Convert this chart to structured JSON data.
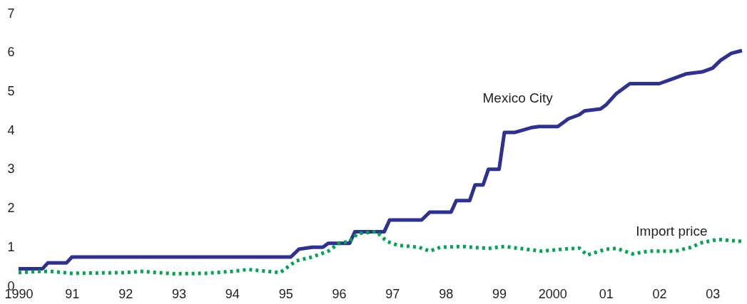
{
  "chart_data": {
    "type": "line",
    "xlim": [
      1990,
      2003.55
    ],
    "ylim": [
      0,
      7
    ],
    "xticks": [
      {
        "value": 1990,
        "label": "1990"
      },
      {
        "value": 1991,
        "label": "91"
      },
      {
        "value": 1992,
        "label": "92"
      },
      {
        "value": 1993,
        "label": "93"
      },
      {
        "value": 1994,
        "label": "94"
      },
      {
        "value": 1995,
        "label": "95"
      },
      {
        "value": 1996,
        "label": "96"
      },
      {
        "value": 1997,
        "label": "97"
      },
      {
        "value": 1998,
        "label": "98"
      },
      {
        "value": 1999,
        "label": "99"
      },
      {
        "value": 2000,
        "label": "2000"
      },
      {
        "value": 2001,
        "label": "01"
      },
      {
        "value": 2002,
        "label": "02"
      },
      {
        "value": 2003,
        "label": "03"
      }
    ],
    "yticks": [
      0,
      1,
      2,
      3,
      4,
      5,
      6,
      7
    ],
    "grid": false,
    "series": [
      {
        "name": "Mexico City",
        "color": "#2e3192",
        "line_style": "solid",
        "x": [
          1990.0,
          1990.45,
          1990.55,
          1990.9,
          1991.0,
          1995.1,
          1995.25,
          1995.5,
          1995.7,
          1995.8,
          1996.2,
          1996.3,
          1996.85,
          1996.95,
          1997.55,
          1997.7,
          1998.1,
          1998.2,
          1998.45,
          1998.55,
          1998.7,
          1998.8,
          1999.0,
          1999.1,
          1999.3,
          1999.6,
          1999.75,
          2000.1,
          2000.3,
          2000.5,
          2000.6,
          2000.9,
          2001.0,
          2001.2,
          2001.45,
          2001.6,
          2002.0,
          2002.3,
          2002.5,
          2002.8,
          2003.0,
          2003.15,
          2003.35,
          2003.55
        ],
        "values": [
          0.45,
          0.45,
          0.6,
          0.6,
          0.75,
          0.75,
          0.95,
          1.0,
          1.0,
          1.1,
          1.1,
          1.4,
          1.4,
          1.7,
          1.7,
          1.9,
          1.9,
          2.2,
          2.2,
          2.6,
          2.6,
          3.0,
          3.0,
          3.95,
          3.95,
          4.07,
          4.1,
          4.1,
          4.3,
          4.4,
          4.5,
          4.55,
          4.65,
          4.95,
          5.2,
          5.2,
          5.2,
          5.35,
          5.45,
          5.5,
          5.6,
          5.8,
          5.98,
          6.05
        ]
      },
      {
        "name": "Import price",
        "color": "#00a651",
        "line_style": "dotted",
        "x": [
          1990.0,
          1990.4,
          1990.6,
          1991.0,
          1992.0,
          1992.3,
          1992.9,
          1993.5,
          1994.0,
          1994.3,
          1994.9,
          1995.2,
          1995.5,
          1995.8,
          1996.0,
          1996.2,
          1996.35,
          1996.7,
          1996.9,
          1997.1,
          1997.5,
          1997.7,
          1997.9,
          1998.3,
          1998.8,
          1999.1,
          1999.5,
          1999.8,
          2000.2,
          2000.5,
          2000.65,
          2001.0,
          2001.2,
          2001.5,
          2001.8,
          2002.3,
          2002.6,
          2002.8,
          2003.1,
          2003.55
        ],
        "values": [
          0.35,
          0.38,
          0.38,
          0.33,
          0.35,
          0.38,
          0.32,
          0.33,
          0.38,
          0.43,
          0.35,
          0.65,
          0.75,
          0.9,
          1.1,
          1.15,
          1.35,
          1.4,
          1.15,
          1.05,
          1.0,
          0.9,
          1.0,
          1.02,
          0.97,
          1.02,
          0.95,
          0.9,
          0.95,
          0.98,
          0.8,
          0.95,
          0.97,
          0.83,
          0.9,
          0.9,
          1.0,
          1.12,
          1.2,
          1.15
        ]
      }
    ]
  }
}
